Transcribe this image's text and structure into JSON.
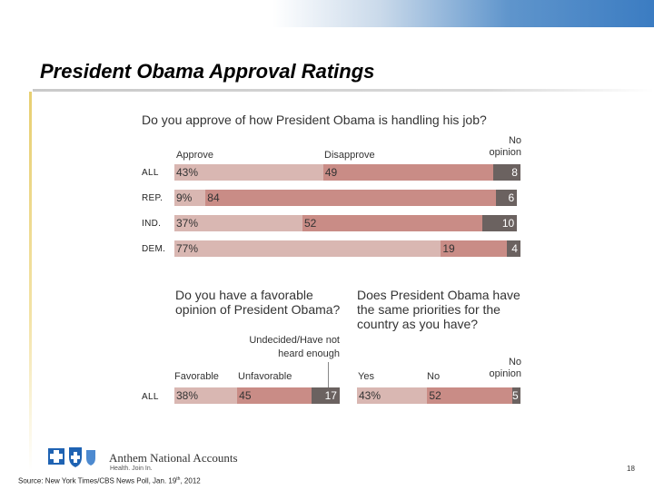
{
  "slide": {
    "title": "President Obama Approval Ratings",
    "page_number": "18",
    "source_prefix": "Source: New York Times/CBS News Poll, Jan. 19",
    "source_sup": "th",
    "source_suffix": ", 2012",
    "brand_name": "Anthem National Accounts",
    "brand_tagline": "Health. Join In.",
    "colors": {
      "approve": "#d9b7b2",
      "disapprove": "#c98c86",
      "no_opinion": "#6b6260",
      "accent_blue": "#3b7cc2"
    }
  },
  "chart_data": [
    {
      "type": "bar",
      "stacked": "horizontal-100",
      "title": "Do you approve of how President Obama is handling his job?",
      "categories": [
        "ALL",
        "REP.",
        "IND.",
        "DEM."
      ],
      "series": [
        {
          "name": "Approve",
          "values": [
            43,
            9,
            37,
            77
          ]
        },
        {
          "name": "Disapprove",
          "values": [
            49,
            84,
            52,
            19
          ]
        },
        {
          "name": "No opinion",
          "values": [
            8,
            6,
            10,
            4
          ]
        }
      ],
      "value_labels": [
        [
          "43%",
          "49",
          "8"
        ],
        [
          "9%",
          "84",
          "6"
        ],
        [
          "37%",
          "52",
          "10"
        ],
        [
          "77%",
          "19",
          "4"
        ]
      ],
      "xlim": [
        0,
        100
      ],
      "grid": false,
      "legend": "top"
    },
    {
      "type": "bar",
      "stacked": "horizontal-100",
      "title": "Do you have a favorable opinion of President Obama?",
      "categories": [
        "ALL"
      ],
      "series": [
        {
          "name": "Favorable",
          "values": [
            38
          ]
        },
        {
          "name": "Unfavorable",
          "values": [
            45
          ]
        },
        {
          "name": "Undecided/Have not heard enough",
          "values": [
            17
          ]
        }
      ],
      "value_labels": [
        [
          "38%",
          "45",
          "17"
        ]
      ],
      "xlim": [
        0,
        100
      ],
      "grid": false,
      "legend": "top"
    },
    {
      "type": "bar",
      "stacked": "horizontal-100",
      "title": "Does President Obama have the same priorities for the country as you have?",
      "categories": [
        "ALL"
      ],
      "series": [
        {
          "name": "Yes",
          "values": [
            43
          ]
        },
        {
          "name": "No",
          "values": [
            52
          ]
        },
        {
          "name": "No opinion",
          "values": [
            5
          ]
        }
      ],
      "value_labels": [
        [
          "43%",
          "52",
          "5"
        ]
      ],
      "xlim": [
        0,
        100
      ],
      "grid": false,
      "legend": "top"
    }
  ]
}
